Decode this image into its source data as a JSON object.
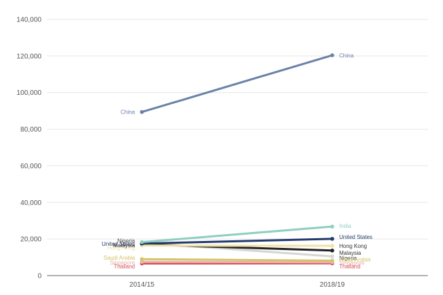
{
  "chart_data": {
    "type": "line",
    "title": "",
    "xlabel": "",
    "ylabel": "",
    "categories": [
      "2014/15",
      "2018/19"
    ],
    "ylim": [
      0,
      140000
    ],
    "y_ticks": [
      0,
      20000,
      40000,
      60000,
      80000,
      100000,
      120000,
      140000
    ],
    "y_tick_labels": [
      "0",
      "20,000",
      "40,000",
      "60,000",
      "80,000",
      "100,000",
      "120,000",
      "140,000"
    ],
    "grid": true,
    "legend": "none (direct labels at line ends)",
    "series": [
      {
        "name": "China",
        "values": [
          89400,
          120400
        ],
        "color": "#6b82a8",
        "label_left": "China",
        "label_right": "China"
      },
      {
        "name": "India",
        "values": [
          18300,
          26800
        ],
        "color": "#8ecfbf",
        "label_left": "",
        "label_right": "India"
      },
      {
        "name": "United States",
        "values": [
          17500,
          20100
        ],
        "color": "#233a6b",
        "label_left": "United States",
        "label_right": "United States"
      },
      {
        "name": "Hong Kong",
        "values": [
          16400,
          16300
        ],
        "color": "#f0e2a8",
        "label_left": "Hong Kong",
        "label_right": "Hong Kong"
      },
      {
        "name": "Malaysia",
        "values": [
          17000,
          13700
        ],
        "color": "#222222",
        "label_left": "Malaysia",
        "label_right": "Malaysia"
      },
      {
        "name": "Nigeria",
        "values": [
          18000,
          10500
        ],
        "color": "#d6d6d6",
        "label_left": "Nigeria",
        "label_right": "Nigeria"
      },
      {
        "name": "Saudi Arabia",
        "values": [
          9000,
          8200
        ],
        "color": "#d3c46a",
        "label_left": "Saudi Arabia",
        "label_right": "Saudi Arabia"
      },
      {
        "name": "Singapore",
        "values": [
          7500,
          7300
        ],
        "color": "#e8b3ab",
        "label_left": "Singapore",
        "label_right": "Singapore"
      },
      {
        "name": "Thailand",
        "values": [
          6600,
          6700
        ],
        "color": "#d84c5a",
        "label_left": "Thailand",
        "label_right": "Thailand"
      }
    ]
  }
}
